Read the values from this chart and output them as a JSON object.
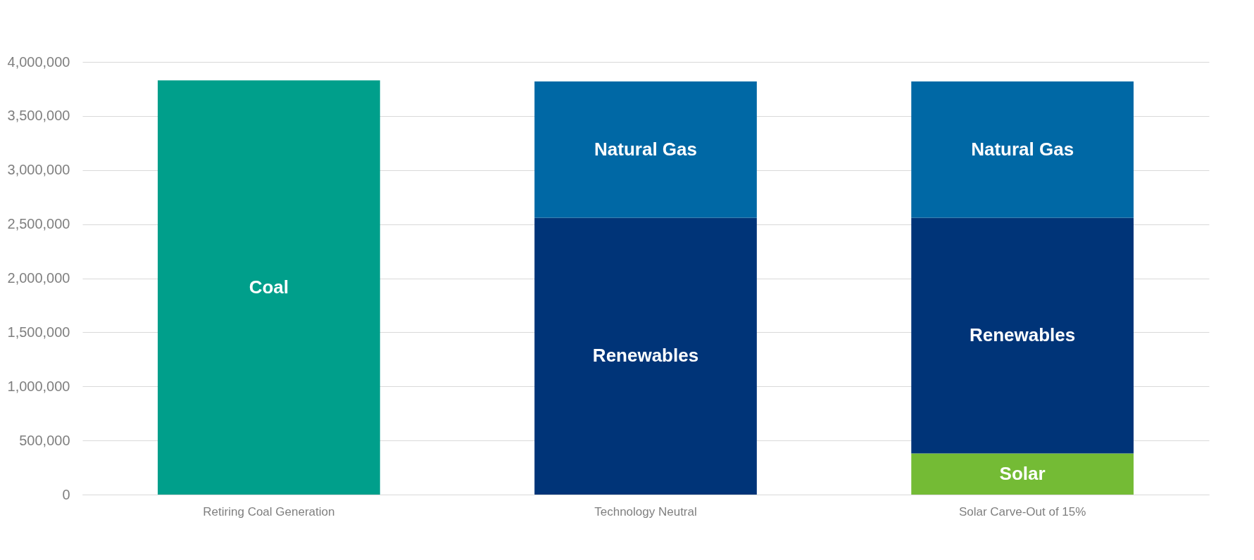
{
  "chart_data": {
    "type": "bar",
    "stacked": true,
    "legend": false,
    "grid": "y",
    "categories": [
      "Retiring Coal Generation",
      "Technology Neutral",
      "Solar Carve-Out of 15%"
    ],
    "series": [
      {
        "name": "Coal",
        "color": "#009f8b",
        "values": [
          3830000,
          null,
          null
        ]
      },
      {
        "name": "Solar",
        "color": "#74bb35",
        "values": [
          null,
          null,
          380000
        ]
      },
      {
        "name": "Renewables",
        "color": "#003478",
        "values": [
          null,
          2560000,
          2180000
        ]
      },
      {
        "name": "Natural Gas",
        "color": "#0068a5",
        "values": [
          null,
          1260000,
          1260000
        ]
      }
    ],
    "ylim": [
      0,
      4000000
    ],
    "yticks": [
      {
        "value": 0,
        "label": "0"
      },
      {
        "value": 500000,
        "label": "500,000"
      },
      {
        "value": 1000000,
        "label": "1,000,000"
      },
      {
        "value": 1500000,
        "label": "1,500,000"
      },
      {
        "value": 2000000,
        "label": "2,000,000"
      },
      {
        "value": 2500000,
        "label": "2,500,000"
      },
      {
        "value": 3000000,
        "label": "3,000,000"
      },
      {
        "value": 3500000,
        "label": "3,500,000"
      },
      {
        "value": 4000000,
        "label": "4,000,000"
      }
    ]
  }
}
